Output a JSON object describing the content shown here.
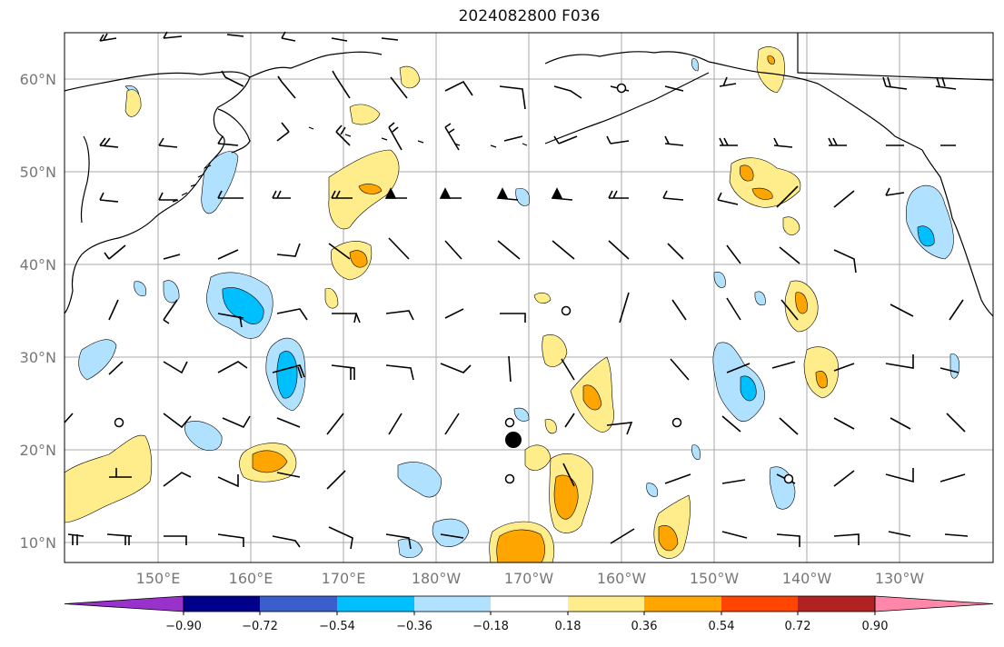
{
  "title": "2024082800 F036",
  "lat_labels": [
    "60°N",
    "50°N",
    "40°N",
    "30°N",
    "20°N",
    "10°N"
  ],
  "lon_labels": [
    "150°E",
    "160°E",
    "170°E",
    "180°W",
    "170°W",
    "160°W",
    "150°W",
    "140°W",
    "130°W"
  ],
  "colorbar": {
    "ticks": [
      "−0.90",
      "−0.72",
      "−0.54",
      "−0.36",
      "−0.18",
      "0.18",
      "0.36",
      "0.54",
      "0.72",
      "0.90"
    ],
    "colors": [
      "#9932cc",
      "#00008b",
      "#3a5fcd",
      "#00bfff",
      "#b0e2ff",
      "#ffffff",
      "#ffec8b",
      "#ffa500",
      "#ff4500",
      "#b22222",
      "#ff88aa"
    ]
  },
  "colors": {
    "light_blue": "#b0e2ff",
    "blue": "#00bfff",
    "light_yellow": "#ffec8b",
    "orange": "#ffa500",
    "grid": "#aaaaaa"
  }
}
